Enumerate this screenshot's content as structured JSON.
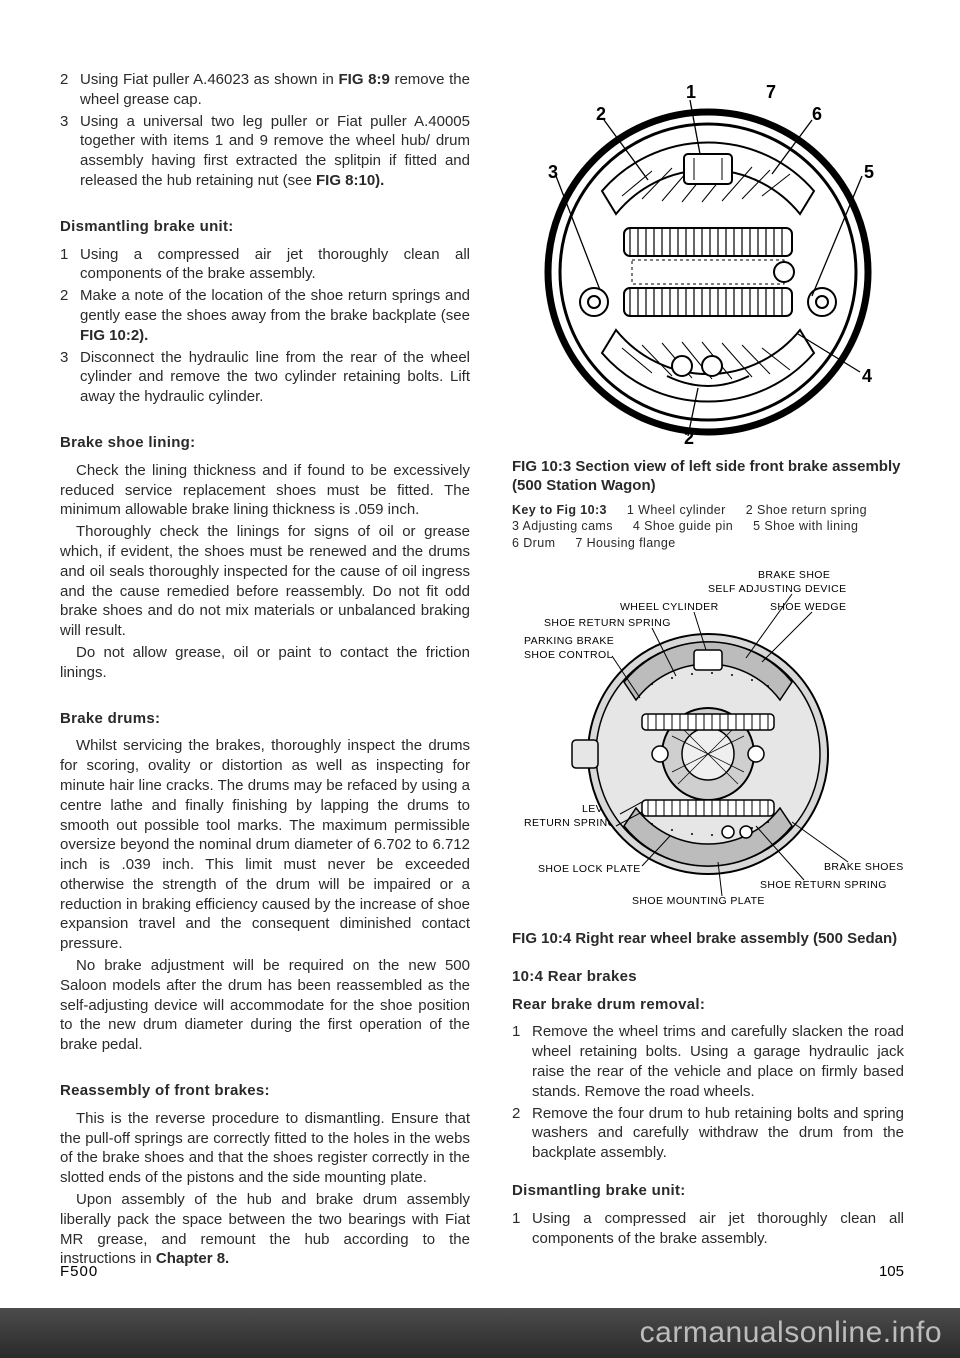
{
  "left": {
    "intro_list": [
      {
        "n": "2",
        "html": "Using Fiat puller A.46023 as shown in <b>FIG 8:9</b> remove the wheel grease cap."
      },
      {
        "n": "3",
        "html": "Using a universal two leg puller or Fiat puller A.40005 together with items 1 and 9 remove the wheel hub/ drum assembly having first extracted the splitpin if fitted and released the hub retaining nut (see <b>FIG 8:10).</b>"
      }
    ],
    "h_dismantle": "Dismantling brake unit:",
    "dismantle_list": [
      {
        "n": "1",
        "html": "Using a compressed air jet thoroughly clean all components of the brake assembly."
      },
      {
        "n": "2",
        "html": "Make a note of the location of the shoe return springs and gently ease the shoes away from the brake backplate (see <b>FIG 10:2).</b>"
      },
      {
        "n": "3",
        "html": "Disconnect the hydraulic line from the rear of the wheel cylinder and remove the two cylinder retaining bolts. Lift away the hydraulic cylinder."
      }
    ],
    "h_lining": "Brake shoe lining:",
    "lining_p1": "Check the lining thickness and if found to be excessively reduced service replacement shoes must be fitted. The minimum allowable brake lining thickness is .059 inch.",
    "lining_p2": "Thoroughly check the linings for signs of oil or grease which, if evident, the shoes must be renewed and the drums and oil seals thoroughly inspected for the cause of oil ingress and the cause remedied before reassembly. Do not fit odd brake shoes and do not mix materials or unbalanced braking will result.",
    "lining_p3": "Do not allow grease, oil or paint to contact the friction linings.",
    "h_drums": "Brake drums:",
    "drums_p1": "Whilst servicing the brakes, thoroughly inspect the drums for scoring, ovality or distortion as well as inspecting for minute hair line cracks. The drums may be refaced by using a centre lathe and finally finishing by lapping the drums to smooth out possible tool marks. The maximum permissible oversize beyond the nominal drum diameter of 6.702 to 6.712 inch is .039 inch. This limit must never be exceeded otherwise the strength of the drum will be impaired or a reduction in braking efficiency caused by the increase of shoe expansion travel and the consequent diminished contact pressure.",
    "drums_p2": "No brake adjustment will be required on the new 500 Saloon models after the drum has been reassembled as the self-adjusting device will accommodate for the shoe position to the new drum diameter during the first operation of the brake pedal.",
    "h_reass": "Reassembly of front brakes:",
    "reass_p1": "This is the reverse procedure to dismantling. Ensure that the pull-off springs are correctly fitted to the holes in the webs of the brake shoes and that the shoes register correctly in the slotted ends of the pistons and the side mounting plate.",
    "reass_p2": "Upon assembly of the hub and brake drum assembly liberally pack the space between the two bearings with Fiat MR grease, and remount the hub according to the instructions in <b>Chapter 8.</b>"
  },
  "right": {
    "fig103_cap": "FIG 10:3   Section view of left side front brake assembly (500 Station Wagon)",
    "key103_hdr": "Key to Fig 10:3",
    "key103_items": [
      "1  Wheel cylinder",
      "2  Shoe return spring",
      "3  Adjusting cams",
      "4  Shoe guide pin",
      "5  Shoe with lining",
      "6  Drum",
      "7  Housing flange"
    ],
    "fig104_labels": {
      "title1a": "BRAKE  SHOE",
      "title1b": "SELF     ADJUSTING   DEVICE",
      "wcyl": "WHEEL  CYLINDER",
      "wedge": "SHOE  WEDGE",
      "srs_top": "SHOE  RETURN  SPRING",
      "pbrake1": "PARKING  BRAKE",
      "pbrake2": "SHOE  CONTROL",
      "lever": "LEVER",
      "rspr": "RETURN  SPRINGS",
      "lock": "SHOE  LOCK  PLATE",
      "mount": "SHOE  MOUNTING  PLATE",
      "bshoes": "BRAKE  SHOES",
      "srs_bot": "SHOE  RETURN  SPRING"
    },
    "fig104_cap": "FIG 10:4   Right rear wheel brake assembly (500 Sedan)",
    "h_104": "10:4  Rear brakes",
    "h_rrem": "Rear brake drum removal:",
    "rrem_list": [
      {
        "n": "1",
        "html": "Remove the wheel trims and carefully slacken the road wheel retaining bolts. Using a garage hydraulic jack raise the rear of the vehicle and place on firmly based stands. Remove the road wheels."
      },
      {
        "n": "2",
        "html": "Remove the four drum to hub retaining bolts and spring washers and carefully withdraw the drum from the backplate assembly."
      }
    ],
    "h_rdism": "Dismantling brake unit:",
    "rdism_list": [
      {
        "n": "1",
        "html": "Using a compressed air jet thoroughly clean all components of the brake assembly."
      }
    ]
  },
  "footer_ref": "F500",
  "footer_pg": "105",
  "watermark": "carmanualsonline.info",
  "callouts103": [
    "1",
    "2",
    "3",
    "4",
    "5",
    "6",
    "7"
  ]
}
